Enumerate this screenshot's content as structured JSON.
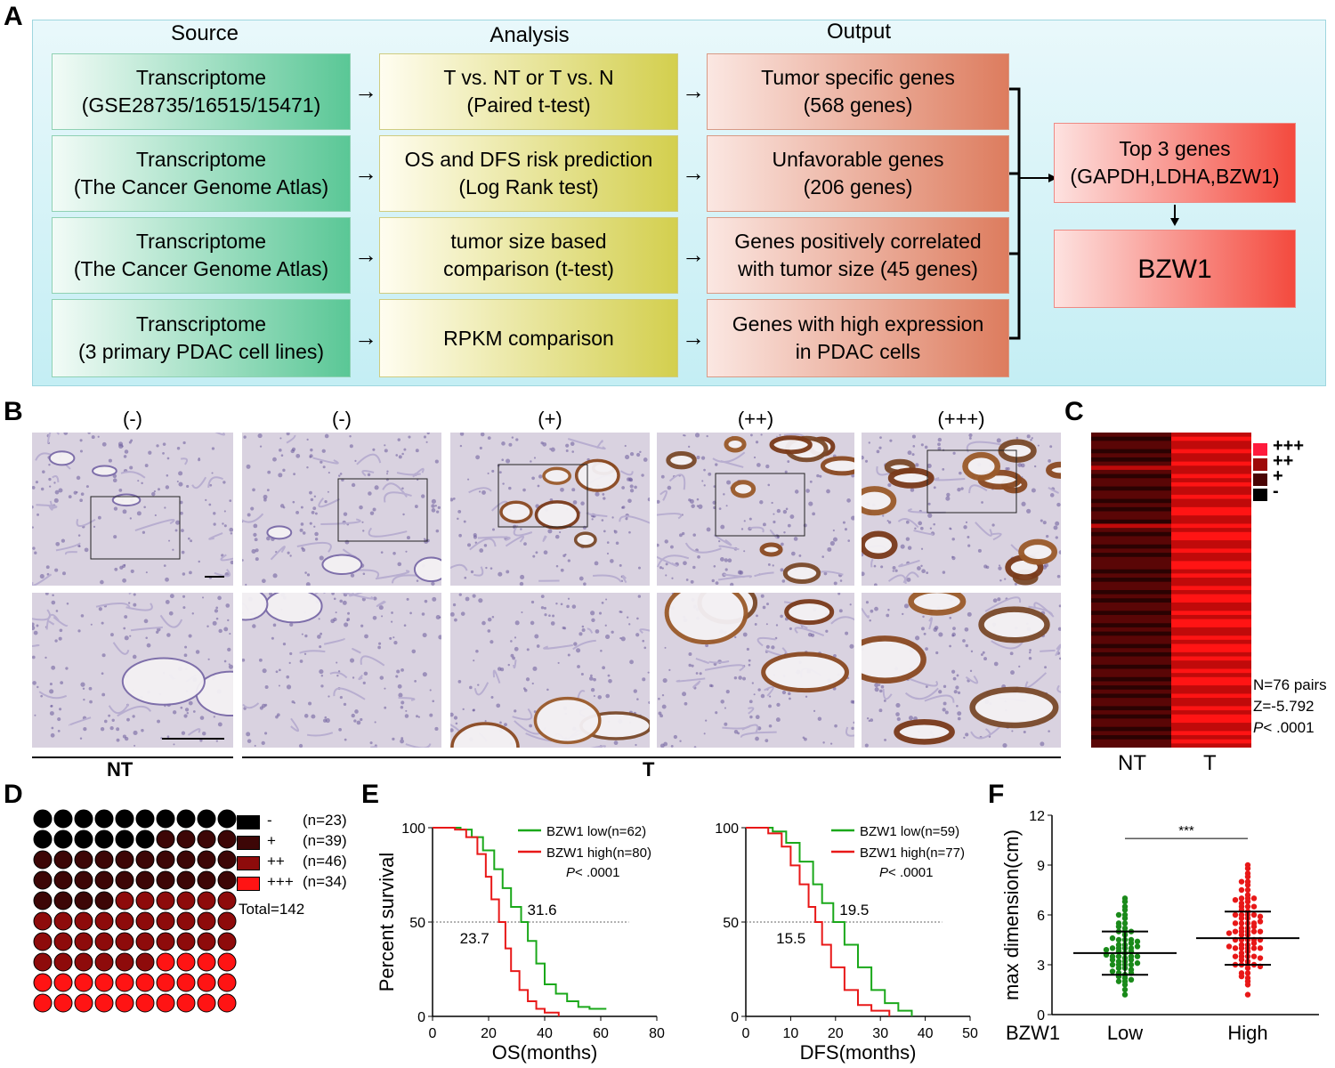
{
  "panelA": {
    "letter": "A",
    "headers": {
      "source": "Source",
      "analysis": "Analysis",
      "output": "Output"
    },
    "rows": [
      {
        "source": [
          "Transcriptome",
          "(GSE28735/16515/15471)"
        ],
        "analysis": [
          "T vs. NT or T vs. N",
          "(Paired t-test)"
        ],
        "output": [
          "Tumor specific genes",
          "(568 genes)"
        ]
      },
      {
        "source": [
          "Transcriptome",
          "(The Cancer Genome Atlas)"
        ],
        "analysis": [
          "OS and DFS risk prediction",
          "(Log Rank test)"
        ],
        "output": [
          "Unfavorable genes",
          "(206 genes)"
        ]
      },
      {
        "source": [
          "Transcriptome",
          "(The Cancer Genome Atlas)"
        ],
        "analysis": [
          "tumor size based",
          "comparison (t-test)"
        ],
        "output": [
          "Genes positively correlated",
          "with tumor size (45 genes)"
        ]
      },
      {
        "source": [
          "Transcriptome",
          "(3 primary PDAC cell lines)"
        ],
        "analysis": [
          "RPKM comparison"
        ],
        "output": [
          "Genes with high expression",
          "in PDAC cells"
        ]
      }
    ],
    "top_genes": [
      "Top 3 genes",
      "(GAPDH,LDHA,BZW1)"
    ],
    "final_gene": "BZW1"
  },
  "panelB": {
    "letter": "B",
    "grades": [
      "(-)",
      "(-)",
      "(+)",
      "(++)",
      "(+++)"
    ],
    "group_nt": "NT",
    "group_t": "T",
    "stain_levels": [
      0,
      0,
      1,
      2,
      3
    ]
  },
  "panelC": {
    "letter": "C",
    "legend": [
      "+++",
      "++",
      "+",
      "-"
    ],
    "legend_colors": [
      "#ff1a3c",
      "#9e0a0a",
      "#4a0505",
      "#000000"
    ],
    "stats": {
      "n": "N=76 pairs",
      "z": "Z=-5.792",
      "p_italic": "P",
      "p_rest": "< .0001"
    },
    "xlabels": [
      "NT",
      "T"
    ],
    "nt_rows": [
      1,
      0,
      1,
      1,
      0,
      1,
      0,
      1,
      2,
      1,
      0,
      1,
      1,
      0,
      1,
      1,
      0,
      1,
      0,
      1,
      1,
      0,
      2,
      1,
      0,
      1,
      1,
      0,
      1,
      0,
      1,
      1,
      1,
      0,
      1,
      0,
      1,
      1,
      0,
      1,
      0,
      1,
      1,
      0,
      1,
      1,
      0,
      1,
      0,
      1,
      1,
      0,
      1,
      0,
      1,
      1,
      0,
      1,
      1,
      0,
      1,
      0,
      1,
      0,
      1,
      1,
      0,
      1,
      0,
      1,
      1,
      0,
      1,
      0,
      1,
      1
    ],
    "t_rows": [
      2,
      3,
      2,
      2,
      3,
      2,
      2,
      3,
      2,
      2,
      3,
      2,
      3,
      2,
      2,
      3,
      2,
      2,
      3,
      3,
      2,
      2,
      3,
      2,
      3,
      3,
      2,
      2,
      3,
      2,
      2,
      3,
      3,
      2,
      3,
      2,
      2,
      3,
      2,
      3,
      3,
      2,
      2,
      3,
      2,
      3,
      3,
      2,
      2,
      3,
      2,
      3,
      3,
      2,
      3,
      2,
      2,
      3,
      2,
      3,
      3,
      2,
      2,
      3,
      2,
      2,
      3,
      2,
      3,
      3,
      2,
      2,
      3,
      2,
      3,
      2
    ]
  },
  "panelD": {
    "letter": "D",
    "legend": [
      {
        "label": "-",
        "n": "(n=23)",
        "color": "#000000"
      },
      {
        "label": "+",
        "n": "(n=39)",
        "color": "#3d0606"
      },
      {
        "label": "++",
        "n": "(n=46)",
        "color": "#8e0b0b"
      },
      {
        "label": "+++",
        "n": "(n=34)",
        "color": "#ff1414"
      }
    ],
    "total": "Total=142",
    "grid_counts": [
      16,
      28,
      32,
      24
    ]
  },
  "panelE": {
    "letter": "E",
    "os": {
      "xlabel": "OS(months)",
      "ylabel": "Percent survival",
      "xticks": [
        "0",
        "20",
        "40",
        "60",
        "80"
      ],
      "yticks": [
        "0",
        "50",
        "100"
      ],
      "xlim": [
        0,
        80
      ],
      "ylim": [
        0,
        100
      ],
      "legend_low": "BZW1 low(n=62)",
      "legend_high": "BZW1 high(n=80)",
      "p_italic": "P",
      "p_rest": "< .0001",
      "median_low": "31.6",
      "median_high": "23.7",
      "low_x": [
        0,
        10,
        14,
        18,
        22,
        25,
        28,
        31.6,
        34,
        37,
        40,
        44,
        48,
        52,
        56,
        62
      ],
      "low_y": [
        100,
        99,
        95,
        88,
        78,
        68,
        58,
        50,
        40,
        28,
        17,
        12,
        8,
        5,
        4,
        4
      ],
      "high_x": [
        0,
        8,
        12,
        16,
        19,
        21,
        23.7,
        26,
        28,
        31,
        34,
        37,
        40,
        45
      ],
      "high_y": [
        100,
        99,
        95,
        86,
        74,
        62,
        50,
        36,
        24,
        14,
        8,
        4,
        2,
        0
      ]
    },
    "dfs": {
      "xlabel": "DFS(months)",
      "xticks": [
        "0",
        "10",
        "20",
        "30",
        "40",
        "50"
      ],
      "xlim": [
        0,
        50
      ],
      "ylim": [
        0,
        100
      ],
      "legend_low": "BZW1 low(n=59)",
      "legend_high": "BZW1 high(n=77)",
      "p_italic": "P",
      "p_rest": "< .0001",
      "median_low": "19.5",
      "median_high": "15.5",
      "low_x": [
        0,
        6,
        9,
        12,
        15,
        17,
        19.5,
        22,
        25,
        28,
        31,
        34,
        37
      ],
      "low_y": [
        100,
        98,
        92,
        82,
        70,
        60,
        50,
        38,
        26,
        14,
        7,
        3,
        0
      ],
      "high_x": [
        0,
        5,
        8,
        10,
        12,
        14,
        15.5,
        17,
        19,
        22,
        25,
        28,
        32
      ],
      "high_y": [
        100,
        97,
        90,
        80,
        70,
        58,
        50,
        38,
        26,
        14,
        6,
        3,
        0
      ]
    }
  },
  "panelF": {
    "letter": "F",
    "ylabel": "max dimension(cm)",
    "yticks": [
      "0",
      "3",
      "6",
      "9",
      "12"
    ],
    "ylim": [
      0,
      12
    ],
    "xprefix": "BZW1",
    "categories": [
      "Low",
      "High"
    ],
    "sig": "***",
    "low": {
      "mean": 3.7,
      "sd_low": 2.4,
      "sd_high": 5.0,
      "color": "#1a8a1a",
      "values": [
        1.2,
        1.5,
        1.8,
        2.0,
        2.0,
        2.2,
        2.3,
        2.4,
        2.5,
        2.5,
        2.6,
        2.8,
        2.8,
        3.0,
        3.0,
        3.0,
        3.0,
        3.1,
        3.2,
        3.2,
        3.3,
        3.4,
        3.5,
        3.5,
        3.5,
        3.5,
        3.6,
        3.7,
        3.8,
        3.8,
        4.0,
        4.0,
        4.0,
        4.0,
        4.1,
        4.2,
        4.2,
        4.3,
        4.5,
        4.5,
        4.5,
        4.6,
        4.8,
        5.0,
        5.0,
        5.0,
        5.2,
        5.5,
        5.5,
        5.8,
        6.0,
        6.0,
        6.3,
        6.5,
        6.8,
        7.0,
        2.7,
        3.3,
        3.9,
        4.4,
        2.1,
        5.3
      ]
    },
    "high": {
      "mean": 4.6,
      "sd_low": 3.0,
      "sd_high": 6.2,
      "color": "#e81818",
      "values": [
        1.2,
        1.8,
        2.0,
        2.2,
        2.5,
        2.5,
        2.8,
        3.0,
        3.0,
        3.0,
        3.0,
        3.2,
        3.3,
        3.5,
        3.5,
        3.5,
        3.5,
        3.8,
        4.0,
        4.0,
        4.0,
        4.0,
        4.0,
        4.2,
        4.2,
        4.5,
        4.5,
        4.5,
        4.5,
        4.5,
        4.8,
        4.8,
        5.0,
        5.0,
        5.0,
        5.0,
        5.0,
        5.2,
        5.2,
        5.5,
        5.5,
        5.5,
        5.5,
        5.8,
        5.8,
        6.0,
        6.0,
        6.0,
        6.0,
        6.2,
        6.5,
        6.5,
        6.5,
        6.8,
        7.0,
        7.0,
        7.0,
        7.2,
        7.5,
        7.5,
        8.0,
        8.0,
        8.3,
        8.5,
        8.8,
        9.0,
        2.9,
        3.7,
        4.3,
        4.9,
        5.3,
        5.9,
        6.3,
        6.7,
        3.4,
        4.1,
        5.6,
        7.8,
        2.3,
        6.9
      ]
    }
  }
}
